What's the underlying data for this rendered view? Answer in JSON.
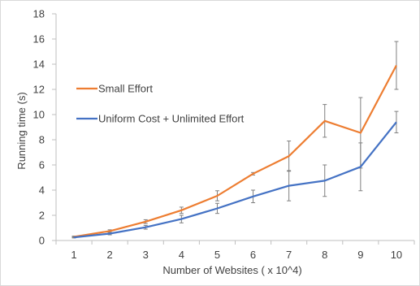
{
  "chart_data": {
    "type": "line",
    "categories": [
      "1",
      "2",
      "3",
      "4",
      "5",
      "6",
      "7",
      "8",
      "9",
      "10"
    ],
    "x": [
      1,
      2,
      3,
      4,
      5,
      6,
      7,
      8,
      9,
      10
    ],
    "xlabel": "Number of Websites ( x 10^4)",
    "ylabel": "Running time (s)",
    "ylim": [
      0,
      18
    ],
    "yticks": [
      0,
      2,
      4,
      6,
      8,
      10,
      12,
      14,
      16,
      18
    ],
    "grid": false,
    "legend_position": "left-inside",
    "series": [
      {
        "name": "Small Effort",
        "color": "#ED7D31",
        "values": [
          0.3,
          0.75,
          1.5,
          2.4,
          3.55,
          5.3,
          6.7,
          9.5,
          8.55,
          13.9
        ],
        "error": [
          0.05,
          0.1,
          0.15,
          0.25,
          0.4,
          0.1,
          1.2,
          1.3,
          2.8,
          1.9
        ]
      },
      {
        "name": "Uniform Cost + Unlimited Effort",
        "color": "#4472C4",
        "values": [
          0.25,
          0.55,
          1.05,
          1.7,
          2.55,
          3.5,
          4.35,
          4.75,
          5.85,
          9.4
        ],
        "error": [
          0.05,
          0.1,
          0.15,
          0.3,
          0.4,
          0.5,
          1.2,
          1.25,
          1.9,
          0.85
        ]
      }
    ]
  }
}
